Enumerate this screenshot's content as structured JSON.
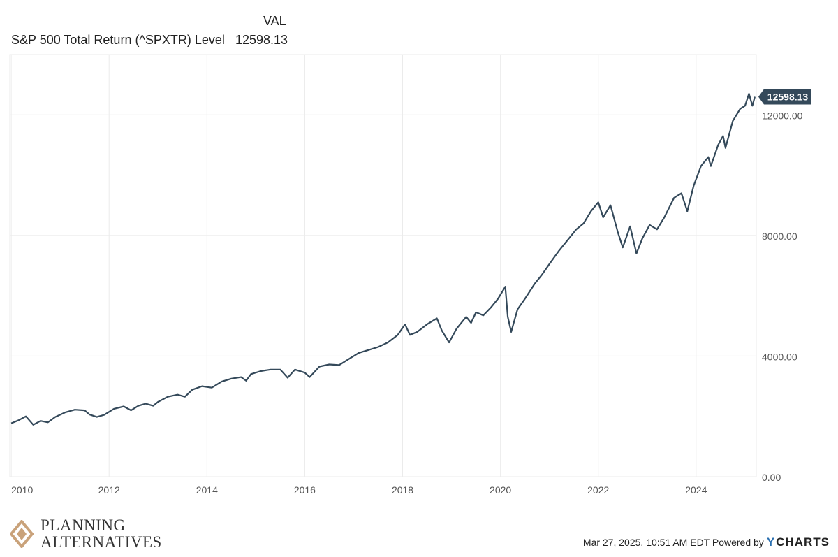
{
  "legend": {
    "header": "VAL",
    "series_name": "S&P 500 Total Return (^SPXTR) Level",
    "series_value": "12598.13"
  },
  "footer": {
    "timestamp": "Mar 27, 2025, 10:51 AM EDT Powered by",
    "brand": "CHARTS",
    "brand_prefix": "Y",
    "logo_line1": "PLANNING",
    "logo_line2": "ALTERNATIVES"
  },
  "colors": {
    "line": "#34495a",
    "grid": "#ebebeb",
    "axis_text": "#555555",
    "tag_bg": "#34495a",
    "logo_gold": "#c9a27a"
  },
  "chart_data": {
    "type": "line",
    "title": "",
    "xlabel": "",
    "ylabel": "",
    "ylim": [
      0,
      14000
    ],
    "xlim": [
      2009.97,
      2025.23
    ],
    "x_ticks": [
      2010,
      2012,
      2014,
      2016,
      2018,
      2020,
      2022,
      2024
    ],
    "x_tick_labels": [
      "2010",
      "2012",
      "2014",
      "2016",
      "2018",
      "2020",
      "2022",
      "2024"
    ],
    "y_ticks": [
      0,
      4000,
      8000,
      12000
    ],
    "y_tick_labels": [
      "0.00",
      "4000.00",
      "8000.00",
      "12000.00"
    ],
    "grid": true,
    "last_value_label": "12598.13",
    "series": [
      {
        "name": "S&P 500 Total Return (^SPXTR) Level",
        "points": [
          [
            2010.0,
            1770
          ],
          [
            2010.15,
            1870
          ],
          [
            2010.3,
            2000
          ],
          [
            2010.45,
            1720
          ],
          [
            2010.6,
            1850
          ],
          [
            2010.75,
            1800
          ],
          [
            2010.9,
            1980
          ],
          [
            2011.1,
            2130
          ],
          [
            2011.3,
            2220
          ],
          [
            2011.5,
            2200
          ],
          [
            2011.6,
            2060
          ],
          [
            2011.75,
            1980
          ],
          [
            2011.9,
            2050
          ],
          [
            2012.1,
            2250
          ],
          [
            2012.3,
            2330
          ],
          [
            2012.45,
            2200
          ],
          [
            2012.6,
            2350
          ],
          [
            2012.75,
            2420
          ],
          [
            2012.9,
            2350
          ],
          [
            2013.0,
            2480
          ],
          [
            2013.2,
            2650
          ],
          [
            2013.4,
            2720
          ],
          [
            2013.55,
            2650
          ],
          [
            2013.7,
            2880
          ],
          [
            2013.9,
            3000
          ],
          [
            2014.1,
            2950
          ],
          [
            2014.3,
            3150
          ],
          [
            2014.5,
            3250
          ],
          [
            2014.7,
            3300
          ],
          [
            2014.8,
            3180
          ],
          [
            2014.9,
            3400
          ],
          [
            2015.1,
            3500
          ],
          [
            2015.3,
            3550
          ],
          [
            2015.5,
            3550
          ],
          [
            2015.65,
            3280
          ],
          [
            2015.8,
            3550
          ],
          [
            2016.0,
            3450
          ],
          [
            2016.1,
            3300
          ],
          [
            2016.3,
            3650
          ],
          [
            2016.5,
            3720
          ],
          [
            2016.7,
            3700
          ],
          [
            2016.9,
            3900
          ],
          [
            2017.1,
            4100
          ],
          [
            2017.3,
            4200
          ],
          [
            2017.5,
            4300
          ],
          [
            2017.7,
            4450
          ],
          [
            2017.9,
            4700
          ],
          [
            2018.05,
            5050
          ],
          [
            2018.15,
            4700
          ],
          [
            2018.3,
            4800
          ],
          [
            2018.5,
            5050
          ],
          [
            2018.7,
            5250
          ],
          [
            2018.8,
            4850
          ],
          [
            2018.95,
            4450
          ],
          [
            2019.1,
            4900
          ],
          [
            2019.3,
            5300
          ],
          [
            2019.4,
            5100
          ],
          [
            2019.5,
            5450
          ],
          [
            2019.65,
            5350
          ],
          [
            2019.8,
            5600
          ],
          [
            2019.95,
            5900
          ],
          [
            2020.1,
            6300
          ],
          [
            2020.15,
            5300
          ],
          [
            2020.22,
            4800
          ],
          [
            2020.35,
            5550
          ],
          [
            2020.5,
            5900
          ],
          [
            2020.7,
            6400
          ],
          [
            2020.85,
            6700
          ],
          [
            2021.0,
            7050
          ],
          [
            2021.2,
            7500
          ],
          [
            2021.4,
            7900
          ],
          [
            2021.55,
            8200
          ],
          [
            2021.7,
            8400
          ],
          [
            2021.85,
            8800
          ],
          [
            2022.0,
            9100
          ],
          [
            2022.1,
            8600
          ],
          [
            2022.25,
            9000
          ],
          [
            2022.4,
            8100
          ],
          [
            2022.5,
            7600
          ],
          [
            2022.65,
            8300
          ],
          [
            2022.78,
            7400
          ],
          [
            2022.9,
            7900
          ],
          [
            2023.05,
            8350
          ],
          [
            2023.2,
            8200
          ],
          [
            2023.35,
            8600
          ],
          [
            2023.55,
            9250
          ],
          [
            2023.7,
            9400
          ],
          [
            2023.82,
            8800
          ],
          [
            2023.95,
            9650
          ],
          [
            2024.1,
            10300
          ],
          [
            2024.25,
            10600
          ],
          [
            2024.3,
            10300
          ],
          [
            2024.45,
            11000
          ],
          [
            2024.55,
            11300
          ],
          [
            2024.6,
            10900
          ],
          [
            2024.75,
            11800
          ],
          [
            2024.9,
            12200
          ],
          [
            2025.0,
            12300
          ],
          [
            2025.08,
            12700
          ],
          [
            2025.15,
            12300
          ],
          [
            2025.2,
            12598.13
          ]
        ]
      }
    ]
  }
}
